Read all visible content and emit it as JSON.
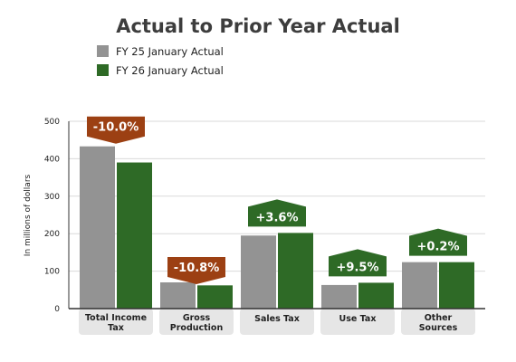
{
  "chart_data": {
    "type": "bar",
    "title": "Actual to Prior Year Actual",
    "ylabel": "In millions of dollars",
    "ylim": [
      0,
      500
    ],
    "yticks": [
      0,
      100,
      200,
      300,
      400,
      500
    ],
    "grid": true,
    "legend_position": "top-left",
    "categories": [
      [
        "Total Income",
        "Tax"
      ],
      [
        "Gross",
        "Production"
      ],
      [
        "Sales Tax"
      ],
      [
        "Use Tax"
      ],
      [
        "Other",
        "Sources"
      ]
    ],
    "series": [
      {
        "name": "FY 25 January Actual",
        "color": "#939393",
        "values": [
          433,
          70,
          195,
          63,
          124
        ]
      },
      {
        "name": "FY 26 January Actual",
        "color": "#2e6a26",
        "values": [
          390,
          62,
          202,
          69,
          124
        ]
      }
    ],
    "change_labels": [
      "-10.0%",
      "-10.8%",
      "+3.6%",
      "+9.5%",
      "+0.2%"
    ],
    "change_colors": {
      "negative": "#9c4013",
      "positive": "#2e6a26"
    },
    "colors": {
      "title": "#3d3d3d",
      "category_pill": "#e6e6e6",
      "grid": "#d9d9d9",
      "axis": "#333333"
    }
  }
}
